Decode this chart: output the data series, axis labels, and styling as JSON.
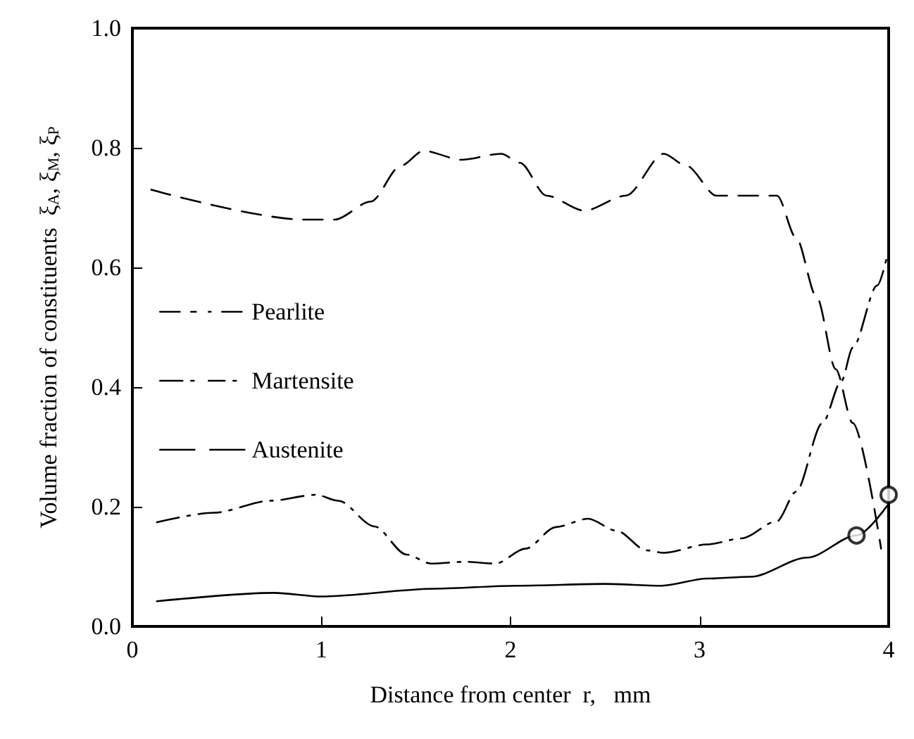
{
  "chart_data": {
    "type": "line",
    "xlabel": "Distance from center  r,   mm",
    "ylabel": "Volume fraction of constituents  ξ$_{A}$, ξ$_{M}$, ξ$_{P}$",
    "xlim": [
      0,
      4
    ],
    "xticks": [
      0,
      1,
      2,
      3,
      4
    ],
    "ylim": [
      0,
      1
    ],
    "yticks": [
      {
        "value": 0,
        "label": "0.0"
      },
      {
        "value": 0.2,
        "label": "0.2"
      },
      {
        "value": 0.4,
        "label": "0.4"
      },
      {
        "value": 0.6,
        "label": "0.6"
      },
      {
        "value": 0.8,
        "label": "0.8"
      },
      {
        "value": 1,
        "label": "1.0"
      }
    ],
    "grid": false,
    "legend": "left",
    "marker": "none",
    "series": [
      {
        "name": "Pearlite",
        "color": "#000000",
        "line_style": "dashed",
        "x": [
          0.1,
          0.91,
          1.07,
          1.26,
          1.42,
          1.54,
          1.74,
          1.95,
          2.05,
          2.19,
          2.39,
          2.61,
          2.81,
          2.93,
          3.09,
          3.28,
          3.41,
          3.51,
          3.62,
          3.72,
          3.81,
          3.96
        ],
        "values": [
          0.73,
          0.68,
          0.68,
          0.71,
          0.77,
          0.795,
          0.78,
          0.79,
          0.775,
          0.72,
          0.695,
          0.72,
          0.79,
          0.77,
          0.72,
          0.72,
          0.72,
          0.65,
          0.55,
          0.43,
          0.34,
          0.13
        ]
      },
      {
        "name": "Martensite",
        "color": "#000000",
        "line_style": "dashdot",
        "x": [
          0.13,
          0.43,
          0.73,
          0.97,
          1.09,
          1.28,
          1.45,
          1.58,
          1.76,
          1.92,
          2.08,
          2.24,
          2.41,
          2.56,
          2.72,
          2.81,
          3.04,
          3.22,
          3.41,
          3.51,
          3.65,
          3.75,
          3.81,
          3.94,
          4.0
        ],
        "values": [
          0.174,
          0.19,
          0.21,
          0.22,
          0.21,
          0.167,
          0.12,
          0.105,
          0.108,
          0.105,
          0.13,
          0.166,
          0.18,
          0.16,
          0.127,
          0.123,
          0.137,
          0.147,
          0.176,
          0.225,
          0.34,
          0.41,
          0.466,
          0.57,
          0.63
        ]
      },
      {
        "name": "Austenite",
        "color": "#000000",
        "line_style": "solid",
        "x": [
          0.13,
          0.75,
          1.0,
          1.6,
          2.03,
          2.5,
          2.8,
          3.04,
          3.27,
          3.57,
          3.83,
          4.0
        ],
        "values": [
          0.042,
          0.056,
          0.05,
          0.063,
          0.068,
          0.071,
          0.068,
          0.08,
          0.083,
          0.115,
          0.152,
          0.205
        ]
      },
      {
        "type": "scatter",
        "color": "#000000",
        "marker": "circle",
        "x": [
          3.83,
          4.0
        ],
        "values": [
          0.152,
          0.22
        ]
      }
    ]
  }
}
